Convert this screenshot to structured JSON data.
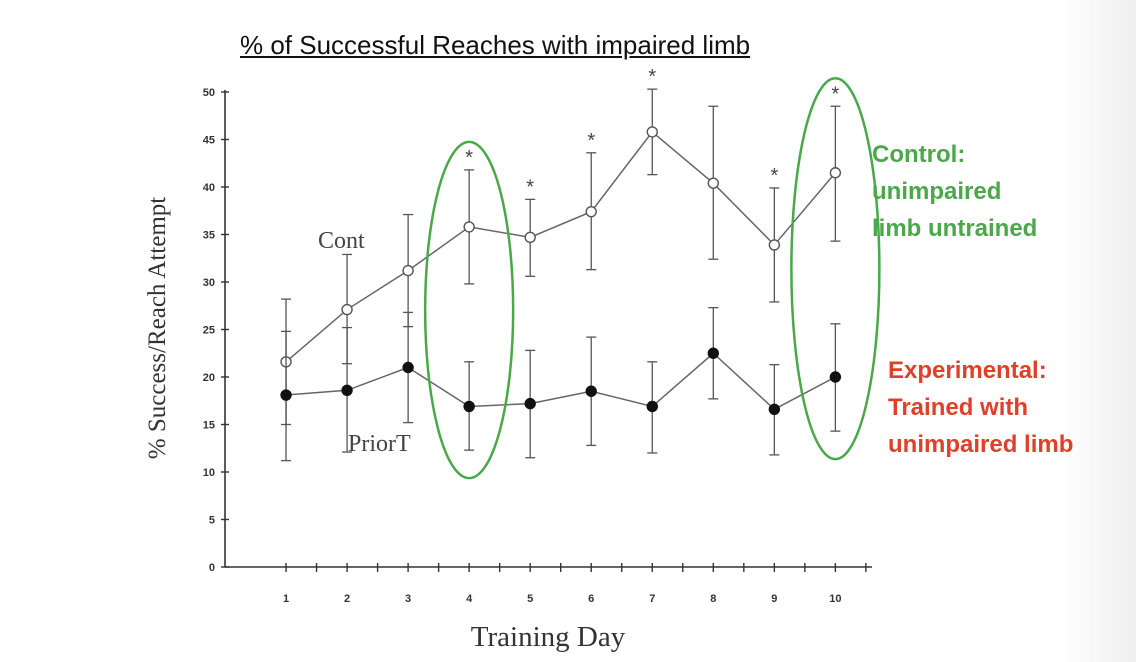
{
  "title": "% of Successful Reaches with impaired limb",
  "chart_data": {
    "type": "line",
    "xlabel": "Training Day",
    "ylabel": "% Success/Reach Attempt",
    "x": [
      1,
      2,
      3,
      4,
      5,
      6,
      7,
      8,
      9,
      10
    ],
    "xlim": [
      0,
      10.6
    ],
    "ylim": [
      0,
      50
    ],
    "yticks": [
      0,
      5,
      10,
      15,
      20,
      25,
      30,
      35,
      40,
      45,
      50
    ],
    "grid": false,
    "series": [
      {
        "name": "Cont",
        "marker": "open-circle",
        "values": [
          21.6,
          27.1,
          31.2,
          35.8,
          34.7,
          37.4,
          45.8,
          40.4,
          33.9,
          41.5
        ],
        "err_low": [
          15.0,
          21.4,
          25.3,
          29.8,
          30.6,
          31.3,
          41.3,
          32.4,
          27.9,
          34.3
        ],
        "err_high": [
          28.2,
          32.9,
          37.1,
          41.8,
          38.7,
          43.6,
          50.3,
          48.5,
          39.9,
          48.5
        ]
      },
      {
        "name": "PriorT",
        "marker": "filled-circle",
        "values": [
          18.1,
          18.6,
          21.0,
          16.9,
          17.2,
          18.5,
          16.9,
          22.5,
          16.6,
          20.0
        ],
        "err_low": [
          11.2,
          12.1,
          15.2,
          12.3,
          11.5,
          12.8,
          12.0,
          17.7,
          11.8,
          14.3
        ],
        "err_high": [
          24.8,
          25.2,
          26.8,
          21.6,
          22.8,
          24.2,
          21.6,
          27.3,
          21.3,
          25.6
        ]
      }
    ],
    "significance_days": [
      4,
      5,
      6,
      7,
      9,
      10
    ],
    "significance_mark": "*",
    "highlighted_days": [
      4,
      10
    ],
    "highlight_color": "#4aa84a"
  },
  "annotations": {
    "control_lines": [
      "Control:",
      "unimpaired",
      "limb untrained"
    ],
    "control_color": "#4aa84a",
    "experimental_lines": [
      "Experimental:",
      "Trained with",
      "unimpaired limb"
    ],
    "experimental_color": "#e0402a"
  }
}
